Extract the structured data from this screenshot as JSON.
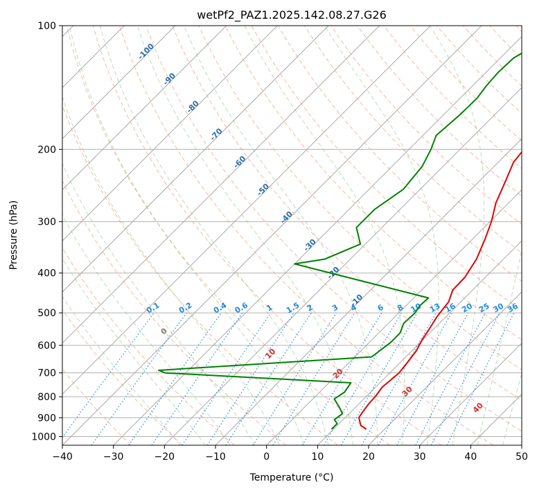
{
  "chart_data": {
    "type": "line",
    "title": "wetPf2_PAZ1.2025.142.08.27.G26",
    "xlabel": "Temperature (°C)",
    "ylabel": "Pressure (hPa)",
    "xlim": [
      -40,
      50
    ],
    "ylim": [
      1050,
      100
    ],
    "y_scale": "log",
    "skew": true,
    "grid": true,
    "x_ticks": [
      -40,
      -30,
      -20,
      -10,
      0,
      10,
      20,
      30,
      40,
      50
    ],
    "y_ticks": [
      100,
      200,
      300,
      400,
      500,
      600,
      700,
      800,
      900,
      1000
    ],
    "series": [
      {
        "key": "temperature",
        "color": "#e00000",
        "points": [
          [
            16.4,
            960
          ],
          [
            14.6,
            940
          ],
          [
            12.7,
            900
          ],
          [
            12.3,
            870
          ],
          [
            11.9,
            830
          ],
          [
            11.8,
            800
          ],
          [
            11.3,
            760
          ],
          [
            11.8,
            700
          ],
          [
            11.4,
            660
          ],
          [
            10.9,
            620
          ],
          [
            9.8,
            580
          ],
          [
            9.2,
            550
          ],
          [
            8.2,
            510
          ],
          [
            7.6,
            470
          ],
          [
            6.1,
            440
          ],
          [
            6.0,
            410
          ],
          [
            4.7,
            370
          ],
          [
            2.4,
            330
          ],
          [
            0.3,
            300
          ],
          [
            -2.5,
            270
          ],
          [
            -4.8,
            240
          ],
          [
            -7.0,
            215
          ],
          [
            -7.5,
            200
          ],
          [
            -8.4,
            185
          ],
          [
            -8.6,
            170
          ],
          [
            -7.4,
            160
          ],
          [
            -6.0,
            150
          ],
          [
            -5.0,
            140
          ],
          [
            -4.7,
            130
          ],
          [
            -2.8,
            122
          ],
          [
            -1.7,
            115
          ],
          [
            -1.3,
            108
          ],
          [
            -2.3,
            100
          ]
        ]
      },
      {
        "key": "dewpoint",
        "color": "#008000",
        "points": [
          [
            9.6,
            960
          ],
          [
            9.6,
            930
          ],
          [
            8.3,
            910
          ],
          [
            8.7,
            880
          ],
          [
            6.9,
            850
          ],
          [
            4.2,
            810
          ],
          [
            4.9,
            780
          ],
          [
            4.3,
            740
          ],
          [
            -34.0,
            700
          ],
          [
            -35.8,
            690
          ],
          [
            3.3,
            640
          ],
          [
            4.2,
            590
          ],
          [
            4.2,
            560
          ],
          [
            3.0,
            530
          ],
          [
            3.2,
            500
          ],
          [
            2.7,
            480
          ],
          [
            2.9,
            460
          ],
          [
            -30.0,
            380
          ],
          [
            -25.0,
            370
          ],
          [
            -21.0,
            340
          ],
          [
            -25.0,
            310
          ],
          [
            -25.0,
            280
          ],
          [
            -23.3,
            250
          ],
          [
            -24.1,
            220
          ],
          [
            -25.7,
            200
          ],
          [
            -27.4,
            185
          ],
          [
            -26.8,
            165
          ],
          [
            -26.7,
            150
          ],
          [
            -27.3,
            140
          ],
          [
            -27.6,
            130
          ],
          [
            -27.4,
            120
          ],
          [
            -25.9,
            113
          ],
          [
            -24.7,
            106
          ],
          [
            -24.0,
            100
          ]
        ]
      }
    ],
    "isotherm_labels": [
      "-100",
      "-90",
      "-80",
      "-70",
      "-60",
      "-50",
      "-40",
      "-30",
      "-20",
      "-10"
    ],
    "isotherm_label_color": "#2b6ea8",
    "mixing_ratio_labels": [
      "0.1",
      "0.2",
      "0.4",
      "0.6",
      "1",
      "1.5",
      "2",
      "3",
      "4",
      "6",
      "8",
      "10",
      "13",
      "16",
      "20",
      "25",
      "30",
      "36"
    ],
    "mixing_ratio_label_color": "#1e88e5",
    "dry_adiabat_labels": [
      "0",
      "10",
      "20",
      "30",
      "40"
    ],
    "dry_adiabat_label_color": "#d32f2f"
  }
}
